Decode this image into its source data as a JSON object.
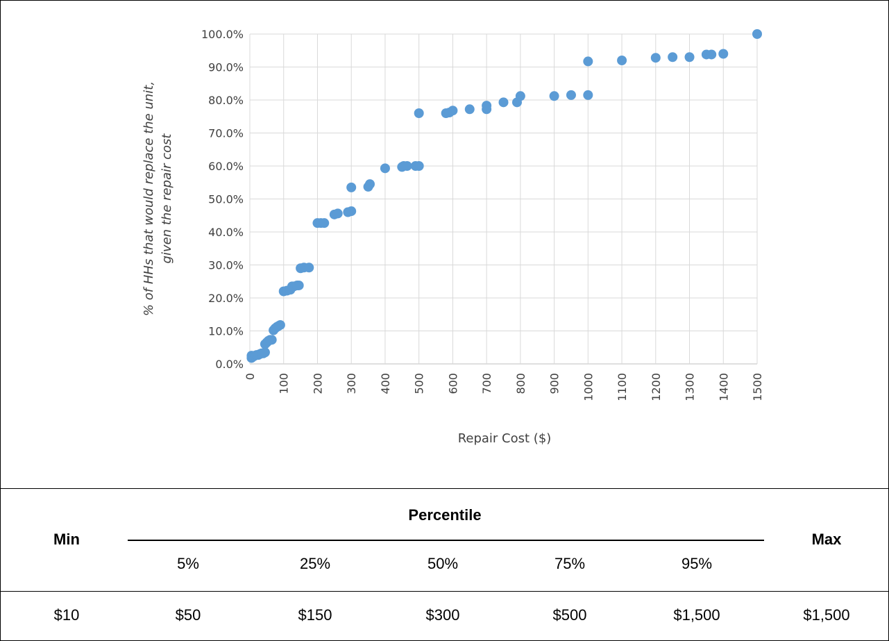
{
  "chart_data": {
    "type": "scatter",
    "title": "",
    "xlabel": "Repair Cost ($)",
    "ylabel_line1": "% of HHs that would replace the unit,",
    "ylabel_line2": "given the repair cost",
    "xlim": [
      0,
      1500
    ],
    "ylim": [
      0,
      100
    ],
    "x_ticks": [
      "0",
      "100",
      "200",
      "300",
      "400",
      "500",
      "600",
      "700",
      "800",
      "900",
      "1000",
      "1100",
      "1200",
      "1300",
      "1400",
      "1500"
    ],
    "y_ticks": [
      "0.0%",
      "10.0%",
      "20.0%",
      "30.0%",
      "40.0%",
      "50.0%",
      "60.0%",
      "70.0%",
      "80.0%",
      "90.0%",
      "100.0%"
    ],
    "grid": true,
    "marker_color": "#5B9BD5",
    "points": [
      [
        5,
        1.8
      ],
      [
        5,
        2.5
      ],
      [
        10,
        2.2
      ],
      [
        15,
        2.5
      ],
      [
        20,
        2.7
      ],
      [
        25,
        2.7
      ],
      [
        30,
        3.0
      ],
      [
        35,
        3.2
      ],
      [
        40,
        3.2
      ],
      [
        45,
        3.5
      ],
      [
        45,
        6.0
      ],
      [
        50,
        6.5
      ],
      [
        55,
        7.0
      ],
      [
        60,
        7.3
      ],
      [
        65,
        7.3
      ],
      [
        70,
        10.2
      ],
      [
        75,
        10.8
      ],
      [
        80,
        11.2
      ],
      [
        85,
        11.5
      ],
      [
        90,
        11.8
      ],
      [
        100,
        22.0
      ],
      [
        110,
        22.2
      ],
      [
        120,
        22.5
      ],
      [
        125,
        23.5
      ],
      [
        130,
        23.5
      ],
      [
        140,
        23.8
      ],
      [
        145,
        23.8
      ],
      [
        150,
        29.0
      ],
      [
        160,
        29.2
      ],
      [
        175,
        29.2
      ],
      [
        200,
        42.7
      ],
      [
        210,
        42.7
      ],
      [
        220,
        42.7
      ],
      [
        250,
        45.3
      ],
      [
        260,
        45.6
      ],
      [
        290,
        46.0
      ],
      [
        300,
        46.3
      ],
      [
        300,
        53.5
      ],
      [
        350,
        53.7
      ],
      [
        355,
        54.5
      ],
      [
        400,
        59.3
      ],
      [
        450,
        59.7
      ],
      [
        455,
        60.0
      ],
      [
        465,
        60.0
      ],
      [
        490,
        60.0
      ],
      [
        500,
        60.0
      ],
      [
        500,
        76.0
      ],
      [
        580,
        76.0
      ],
      [
        590,
        76.2
      ],
      [
        600,
        76.8
      ],
      [
        650,
        77.2
      ],
      [
        700,
        77.2
      ],
      [
        700,
        78.3
      ],
      [
        750,
        79.3
      ],
      [
        790,
        79.3
      ],
      [
        800,
        81.2
      ],
      [
        900,
        81.2
      ],
      [
        950,
        81.5
      ],
      [
        1000,
        81.5
      ],
      [
        1000,
        91.7
      ],
      [
        1100,
        92.0
      ],
      [
        1200,
        92.8
      ],
      [
        1250,
        93.0
      ],
      [
        1300,
        93.0
      ],
      [
        1350,
        93.8
      ],
      [
        1365,
        93.8
      ],
      [
        1400,
        94.0
      ],
      [
        1500,
        100.0
      ]
    ]
  },
  "table": {
    "min_header": "Min",
    "max_header": "Max",
    "percentile_header": "Percentile",
    "percentile_columns": [
      "5%",
      "25%",
      "50%",
      "75%",
      "95%"
    ],
    "row_values": [
      "$10",
      "$50",
      "$150",
      "$300",
      "$500",
      "$1,500",
      "$1,500"
    ]
  }
}
